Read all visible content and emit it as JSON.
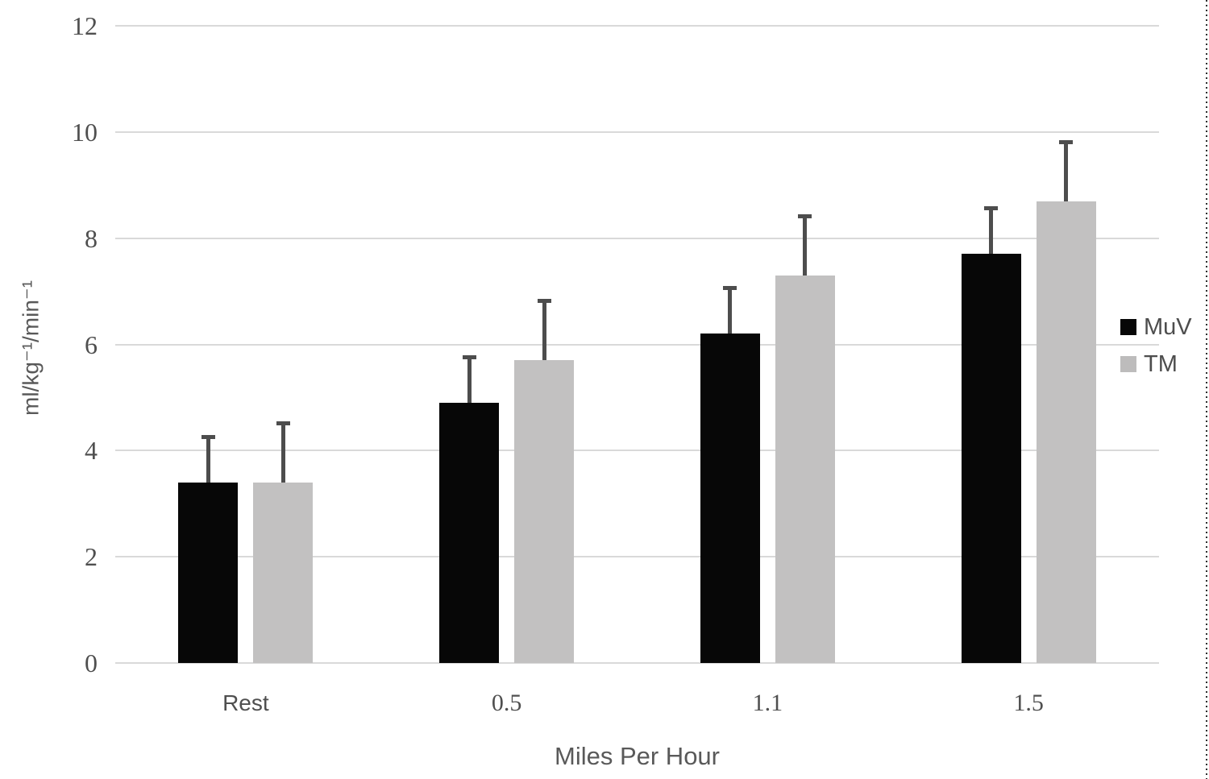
{
  "chart_data": {
    "type": "bar",
    "title": "",
    "categories": [
      "Rest",
      "0.5",
      "1.1",
      "1.5"
    ],
    "series": [
      {
        "name": "MuV",
        "color": "#070707",
        "values": [
          3.4,
          4.9,
          6.2,
          7.7
        ],
        "error_plus": [
          0.9,
          0.9,
          0.9,
          0.9
        ]
      },
      {
        "name": "TM",
        "color": "#c2c1c1",
        "values": [
          3.4,
          5.7,
          7.3,
          8.7
        ],
        "error_plus": [
          1.15,
          1.15,
          1.15,
          1.15
        ]
      }
    ],
    "xlabel": "Miles Per Hour",
    "ylabel": "ml/kg⁻¹/min⁻¹",
    "ylim": [
      0,
      12
    ],
    "yticks": [
      0,
      2,
      4,
      6,
      8,
      10,
      12
    ],
    "grid": true,
    "legend_position": "right",
    "colors": {
      "gridline": "#d9d9d9",
      "error_bar": "#4d4d4d",
      "tick_text": "#4f4f4f",
      "axis_title_text": "#595959",
      "legend_text": "#4d4d4d",
      "legend_swatch_tm": "#bdbcbc",
      "page_edge_dots": "#2f2f2f",
      "background": "#ffffff"
    }
  }
}
